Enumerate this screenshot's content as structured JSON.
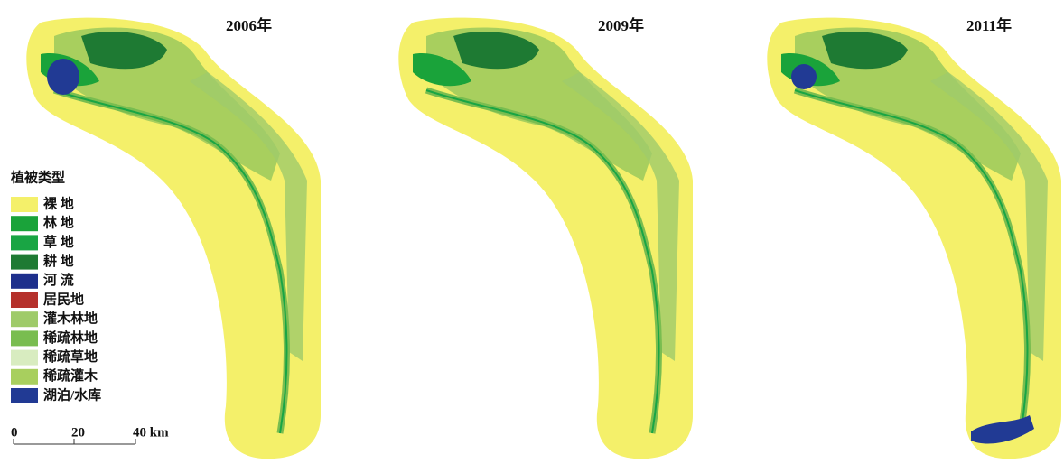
{
  "panels": [
    {
      "title": "2006年"
    },
    {
      "title": "2009年"
    },
    {
      "title": "2011年"
    }
  ],
  "legend": {
    "title": "植被类型",
    "items": [
      {
        "label": "裸 地",
        "color": "#f4f06a"
      },
      {
        "label": "林 地",
        "color": "#1aa33a"
      },
      {
        "label": "草 地",
        "color": "#19a544"
      },
      {
        "label": "耕 地",
        "color": "#1e7a33"
      },
      {
        "label": "河 流",
        "color": "#1d2f8c"
      },
      {
        "label": "居民地",
        "color": "#b5312b"
      },
      {
        "label": "灌木林地",
        "color": "#9fcb6a"
      },
      {
        "label": "稀疏林地",
        "color": "#79bd50"
      },
      {
        "label": "稀疏草地",
        "color": "#d8ecc0"
      },
      {
        "label": "稀疏灌木",
        "color": "#a8cf5e"
      },
      {
        "label": "湖泊/水库",
        "color": "#213a94"
      }
    ]
  },
  "scale": {
    "labels": [
      "0",
      "20",
      "40 km"
    ]
  }
}
